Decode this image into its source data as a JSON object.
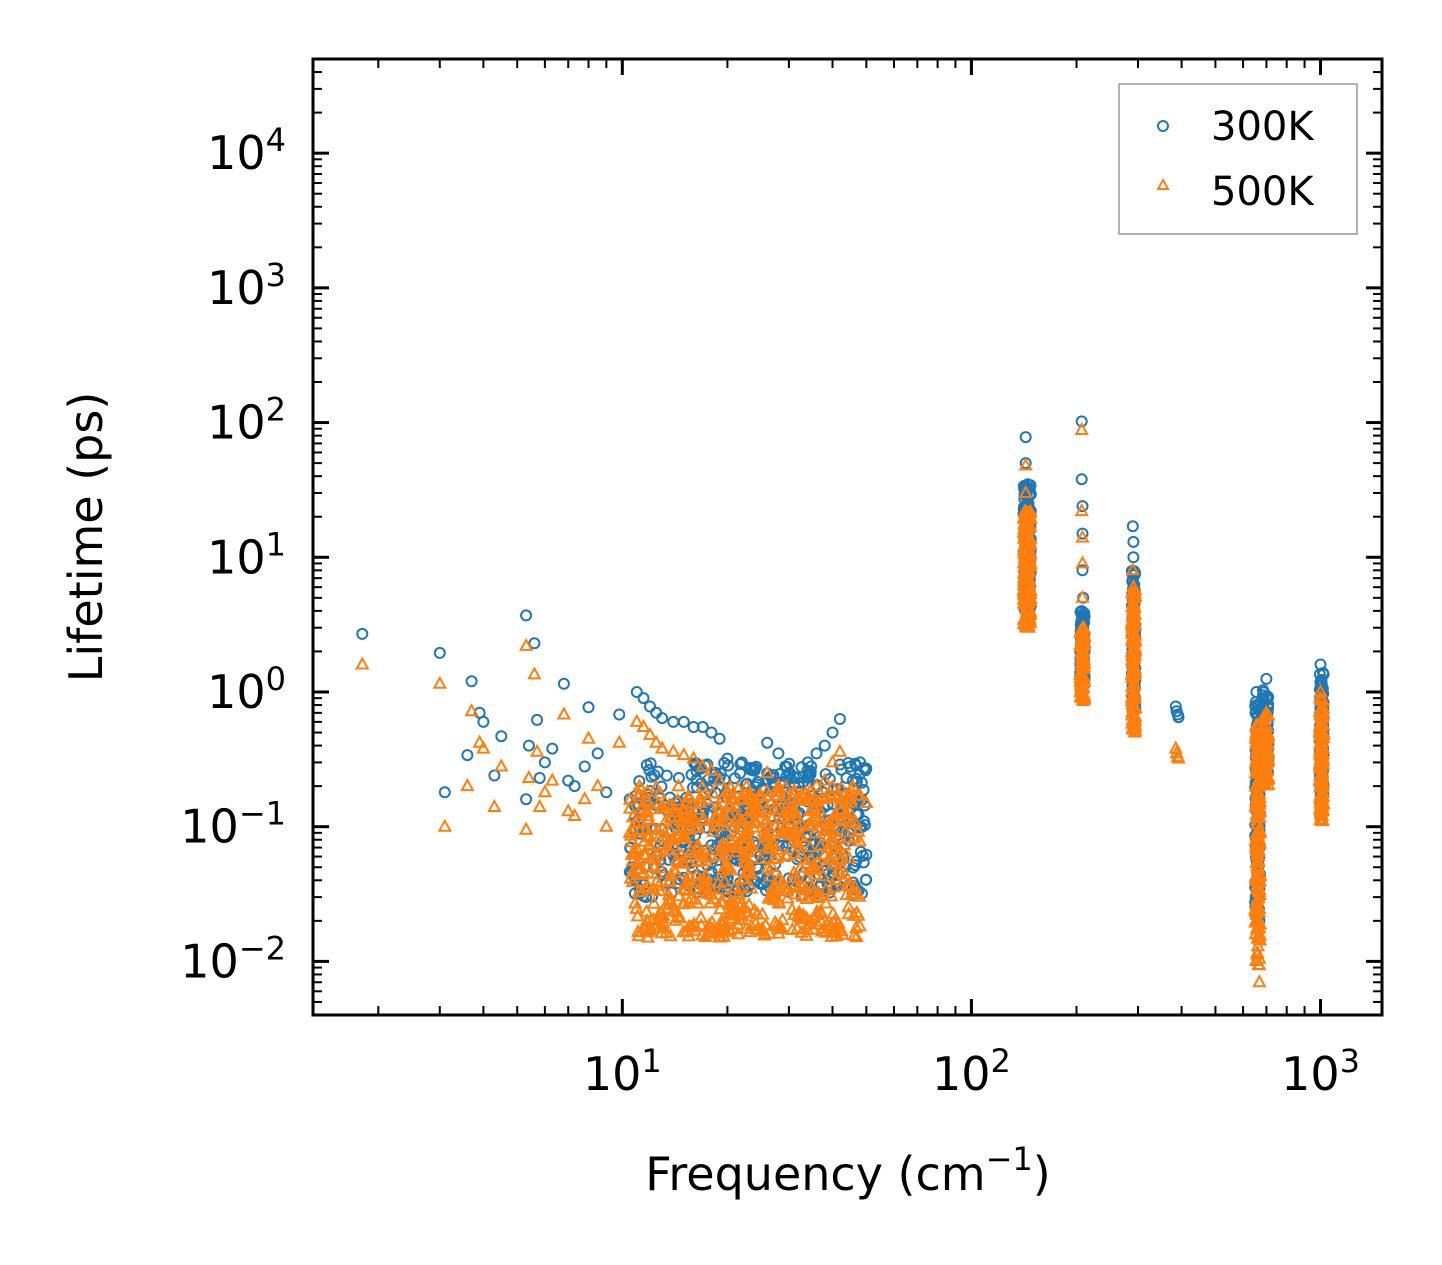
{
  "chart_data": {
    "type": "scatter",
    "xscale": "log",
    "yscale": "log",
    "xlim": [
      1.3,
      1500
    ],
    "ylim": [
      0.004,
      50000
    ],
    "xlabel": "Frequency (cm",
    "xlabel_sup": "−1",
    "xlabel_end": ")",
    "ylabel": "Lifetime (ps)",
    "legend_position": "upper right",
    "x_ticks": [
      {
        "base": "10",
        "exp": "1",
        "value": 10
      },
      {
        "base": "10",
        "exp": "2",
        "value": 100
      },
      {
        "base": "10",
        "exp": "3",
        "value": 1000
      }
    ],
    "y_ticks": [
      {
        "base": "10",
        "exp": "4",
        "value": 10000
      },
      {
        "base": "10",
        "exp": "3",
        "value": 1000
      },
      {
        "base": "10",
        "exp": "2",
        "value": 100
      },
      {
        "base": "10",
        "exp": "1",
        "value": 10
      },
      {
        "base": "10",
        "exp": "0",
        "value": 1
      },
      {
        "base": "10",
        "exp": "−1",
        "value": 0.1
      },
      {
        "base": "10",
        "exp": "−2",
        "value": 0.01
      }
    ],
    "series": [
      {
        "name": "300K",
        "marker": "circle",
        "color": "#1f77b4",
        "points": [
          [
            1.8,
            2.7
          ],
          [
            3.0,
            1.95
          ],
          [
            3.1,
            0.18
          ],
          [
            3.6,
            0.34
          ],
          [
            3.7,
            1.2
          ],
          [
            3.9,
            0.7
          ],
          [
            4.0,
            0.6
          ],
          [
            4.3,
            0.24
          ],
          [
            4.5,
            0.47
          ],
          [
            5.3,
            3.7
          ],
          [
            5.3,
            0.16
          ],
          [
            5.4,
            0.4
          ],
          [
            5.6,
            2.3
          ],
          [
            5.7,
            0.62
          ],
          [
            5.8,
            0.23
          ],
          [
            6.0,
            0.3
          ],
          [
            6.3,
            0.38
          ],
          [
            6.8,
            1.15
          ],
          [
            7.0,
            0.22
          ],
          [
            7.3,
            0.2
          ],
          [
            7.8,
            0.28
          ],
          [
            8.0,
            0.77
          ],
          [
            8.5,
            0.35
          ],
          [
            9.0,
            0.18
          ],
          [
            9.8,
            0.68
          ],
          [
            10.5,
            0.16
          ],
          [
            11.0,
            1.0
          ],
          [
            11.5,
            0.9
          ],
          [
            12.0,
            0.78
          ],
          [
            12.5,
            0.7
          ],
          [
            13.0,
            0.64
          ],
          [
            14.0,
            0.6
          ],
          [
            15.0,
            0.6
          ],
          [
            16.0,
            0.55
          ],
          [
            17.0,
            0.55
          ],
          [
            18.0,
            0.5
          ],
          [
            19.0,
            0.45
          ],
          [
            20.0,
            0.32
          ],
          [
            22.0,
            0.3
          ],
          [
            24.0,
            0.27
          ],
          [
            26.0,
            0.42
          ],
          [
            28.0,
            0.35
          ],
          [
            30.0,
            0.25
          ],
          [
            32.0,
            0.2
          ],
          [
            34.0,
            0.3
          ],
          [
            36.0,
            0.35
          ],
          [
            38.0,
            0.4
          ],
          [
            40.0,
            0.5
          ],
          [
            42.0,
            0.63
          ],
          [
            45.0,
            0.28
          ],
          [
            48.0,
            0.3
          ],
          [
            50.0,
            0.27
          ],
          [
            143,
            78
          ],
          [
            143,
            50
          ],
          [
            143,
            30
          ],
          [
            144,
            20
          ],
          [
            144,
            12
          ],
          [
            145,
            8
          ],
          [
            145,
            5
          ],
          [
            146,
            3.5
          ],
          [
            207,
            102
          ],
          [
            207,
            38
          ],
          [
            208,
            24
          ],
          [
            208,
            15
          ],
          [
            208,
            8
          ],
          [
            209,
            5
          ],
          [
            209,
            3
          ],
          [
            210,
            1.8
          ],
          [
            210,
            1.2
          ],
          [
            290,
            17
          ],
          [
            291,
            13
          ],
          [
            291,
            10
          ],
          [
            292,
            6
          ],
          [
            292,
            3
          ],
          [
            293,
            1.5
          ],
          [
            293,
            0.9
          ],
          [
            294,
            0.6
          ],
          [
            385,
            0.78
          ],
          [
            387,
            0.72
          ],
          [
            390,
            0.68
          ],
          [
            392,
            0.65
          ],
          [
            655,
            1.0
          ],
          [
            658,
            0.5
          ],
          [
            660,
            0.3
          ],
          [
            662,
            0.15
          ],
          [
            664,
            0.08
          ],
          [
            666,
            0.04
          ],
          [
            668,
            0.02
          ],
          [
            700,
            1.25
          ],
          [
            702,
            0.9
          ],
          [
            705,
            0.6
          ],
          [
            1000,
            1.6
          ],
          [
            1005,
            1.2
          ],
          [
            1008,
            0.8
          ],
          [
            1010,
            0.5
          ],
          [
            1012,
            0.3
          ],
          [
            1015,
            0.2
          ]
        ]
      },
      {
        "name": "500K",
        "marker": "triangle",
        "color": "#ff7f0e",
        "points": [
          [
            1.8,
            1.6
          ],
          [
            3.0,
            1.15
          ],
          [
            3.1,
            0.1
          ],
          [
            3.6,
            0.2
          ],
          [
            3.7,
            0.72
          ],
          [
            3.9,
            0.42
          ],
          [
            4.0,
            0.38
          ],
          [
            4.3,
            0.14
          ],
          [
            4.5,
            0.28
          ],
          [
            5.3,
            2.2
          ],
          [
            5.3,
            0.095
          ],
          [
            5.4,
            0.23
          ],
          [
            5.6,
            1.35
          ],
          [
            5.7,
            0.36
          ],
          [
            5.8,
            0.14
          ],
          [
            6.0,
            0.18
          ],
          [
            6.3,
            0.22
          ],
          [
            6.8,
            0.68
          ],
          [
            7.0,
            0.13
          ],
          [
            7.3,
            0.12
          ],
          [
            7.8,
            0.16
          ],
          [
            8.0,
            0.45
          ],
          [
            8.5,
            0.2
          ],
          [
            9.0,
            0.1
          ],
          [
            9.8,
            0.42
          ],
          [
            10.5,
            0.09
          ],
          [
            11.0,
            0.6
          ],
          [
            11.5,
            0.55
          ],
          [
            12.0,
            0.48
          ],
          [
            12.5,
            0.42
          ],
          [
            13.0,
            0.38
          ],
          [
            14.0,
            0.36
          ],
          [
            15.0,
            0.34
          ],
          [
            16.0,
            0.32
          ],
          [
            17.0,
            0.28
          ],
          [
            18.0,
            0.26
          ],
          [
            19.0,
            0.22
          ],
          [
            20.0,
            0.18
          ],
          [
            22.0,
            0.16
          ],
          [
            24.0,
            0.15
          ],
          [
            26.0,
            0.25
          ],
          [
            28.0,
            0.2
          ],
          [
            30.0,
            0.13
          ],
          [
            32.0,
            0.1
          ],
          [
            34.0,
            0.17
          ],
          [
            36.0,
            0.2
          ],
          [
            38.0,
            0.22
          ],
          [
            40.0,
            0.3
          ],
          [
            42.0,
            0.36
          ],
          [
            45.0,
            0.16
          ],
          [
            48.0,
            0.17
          ],
          [
            50.0,
            0.15
          ],
          [
            143,
            48
          ],
          [
            143,
            30
          ],
          [
            143,
            18
          ],
          [
            144,
            12
          ],
          [
            144,
            8
          ],
          [
            145,
            5
          ],
          [
            145,
            3.5
          ],
          [
            146,
            3.0
          ],
          [
            207,
            88
          ],
          [
            207,
            22
          ],
          [
            208,
            14
          ],
          [
            208,
            9
          ],
          [
            208,
            5
          ],
          [
            209,
            3
          ],
          [
            209,
            2
          ],
          [
            210,
            1.2
          ],
          [
            210,
            0.9
          ],
          [
            290,
            8
          ],
          [
            291,
            6
          ],
          [
            291,
            4
          ],
          [
            292,
            2.5
          ],
          [
            292,
            1.5
          ],
          [
            293,
            0.9
          ],
          [
            293,
            0.6
          ],
          [
            294,
            0.5
          ],
          [
            385,
            0.38
          ],
          [
            387,
            0.35
          ],
          [
            390,
            0.33
          ],
          [
            392,
            0.32
          ],
          [
            655,
            0.5
          ],
          [
            658,
            0.25
          ],
          [
            660,
            0.15
          ],
          [
            662,
            0.07
          ],
          [
            664,
            0.035
          ],
          [
            666,
            0.015
          ],
          [
            668,
            0.007
          ],
          [
            700,
            0.7
          ],
          [
            702,
            0.5
          ],
          [
            705,
            0.3
          ],
          [
            1000,
            1.0
          ],
          [
            1005,
            0.7
          ],
          [
            1008,
            0.45
          ],
          [
            1010,
            0.3
          ],
          [
            1012,
            0.18
          ],
          [
            1015,
            0.11
          ]
        ]
      }
    ],
    "clusters": [
      {
        "series": 0,
        "xmin": 10.5,
        "xmax": 50,
        "ymin": 0.03,
        "ymax": 0.3,
        "n": 500,
        "seed": 11
      },
      {
        "series": 1,
        "xmin": 10.5,
        "xmax": 48,
        "ymin": 0.015,
        "ymax": 0.2,
        "n": 650,
        "seed": 23
      },
      {
        "series": 0,
        "xmin": 141,
        "xmax": 148,
        "ymin": 4,
        "ymax": 35,
        "n": 160,
        "seed": 31
      },
      {
        "series": 1,
        "xmin": 141,
        "xmax": 148,
        "ymin": 3,
        "ymax": 22,
        "n": 160,
        "seed": 37
      },
      {
        "series": 0,
        "xmin": 205,
        "xmax": 211,
        "ymin": 1.0,
        "ymax": 4,
        "n": 80,
        "seed": 41
      },
      {
        "series": 1,
        "xmin": 205,
        "xmax": 211,
        "ymin": 0.85,
        "ymax": 3,
        "n": 80,
        "seed": 43
      },
      {
        "series": 0,
        "xmin": 288,
        "xmax": 295,
        "ymin": 0.7,
        "ymax": 8,
        "n": 120,
        "seed": 47
      },
      {
        "series": 1,
        "xmin": 288,
        "xmax": 295,
        "ymin": 0.5,
        "ymax": 6,
        "n": 120,
        "seed": 53
      },
      {
        "series": 0,
        "xmin": 650,
        "xmax": 672,
        "ymin": 0.02,
        "ymax": 0.9,
        "n": 140,
        "seed": 59
      },
      {
        "series": 1,
        "xmin": 650,
        "xmax": 672,
        "ymin": 0.009,
        "ymax": 0.6,
        "n": 140,
        "seed": 61
      },
      {
        "series": 0,
        "xmin": 680,
        "xmax": 710,
        "ymin": 0.25,
        "ymax": 1.1,
        "n": 60,
        "seed": 67
      },
      {
        "series": 1,
        "xmin": 680,
        "xmax": 710,
        "ymin": 0.2,
        "ymax": 0.7,
        "n": 60,
        "seed": 71
      },
      {
        "series": 0,
        "xmin": 995,
        "xmax": 1020,
        "ymin": 0.15,
        "ymax": 1.4,
        "n": 120,
        "seed": 73
      },
      {
        "series": 1,
        "xmin": 995,
        "xmax": 1020,
        "ymin": 0.11,
        "ymax": 0.9,
        "n": 120,
        "seed": 79
      }
    ]
  }
}
